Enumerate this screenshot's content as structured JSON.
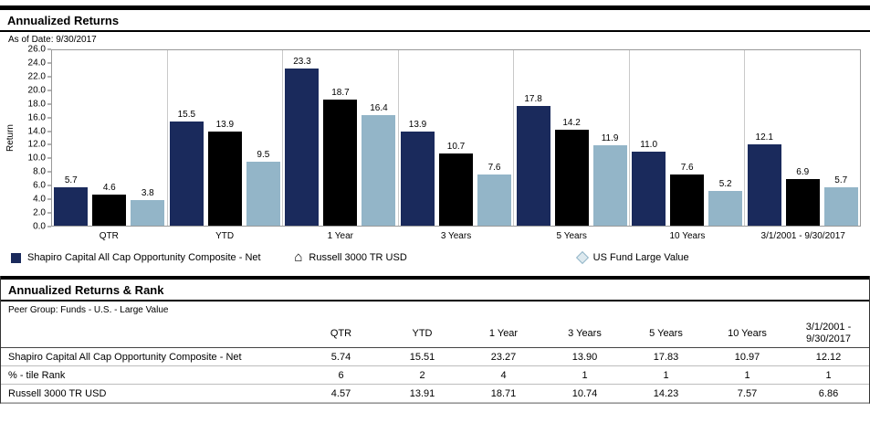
{
  "section1": {
    "title": "Annualized Returns",
    "as_of": "As of Date: 9/30/2017"
  },
  "chart_data": {
    "type": "bar",
    "title": "Annualized Returns",
    "xlabel": "",
    "ylabel": "Return",
    "ylim": [
      0,
      26
    ],
    "ytick_step": 2,
    "yticks": [
      "26.0",
      "24.0",
      "22.0",
      "20.0",
      "18.0",
      "16.0",
      "14.0",
      "12.0",
      "10.0",
      "8.0",
      "6.0",
      "4.0",
      "2.0",
      "0.0"
    ],
    "grid": "category-separators",
    "legend_position": "bottom",
    "categories": [
      "QTR",
      "YTD",
      "1 Year",
      "3 Years",
      "5 Years",
      "10 Years",
      "3/1/2001 - 9/30/2017"
    ],
    "series": [
      {
        "name": "Shapiro Capital All Cap Opportunity Composite - Net",
        "marker": "square",
        "color": "#1A2A5C",
        "values": [
          5.7,
          15.5,
          23.3,
          13.9,
          17.8,
          11.0,
          12.1
        ]
      },
      {
        "name": "Russell 3000 TR USD",
        "marker": "house",
        "color": "#000000",
        "values": [
          4.6,
          13.9,
          18.7,
          10.7,
          14.2,
          7.6,
          6.9
        ]
      },
      {
        "name": "US Fund Large Value",
        "marker": "diamond",
        "color": "#93B5C8",
        "values": [
          3.8,
          9.5,
          16.4,
          7.6,
          11.9,
          5.2,
          5.7
        ]
      }
    ]
  },
  "section2": {
    "title": "Annualized Returns & Rank",
    "peer_group": "Peer Group: Funds - U.S. - Large Value",
    "table": {
      "columns": [
        "",
        "QTR",
        "YTD",
        "1 Year",
        "3 Years",
        "5 Years",
        "10 Years",
        "3/1/2001 - 9/30/2017"
      ],
      "rows": [
        {
          "label": "Shapiro Capital All Cap Opportunity Composite - Net",
          "values": [
            "5.74",
            "15.51",
            "23.27",
            "13.90",
            "17.83",
            "10.97",
            "12.12"
          ]
        },
        {
          "label": "% - tile Rank",
          "values": [
            "6",
            "2",
            "4",
            "1",
            "1",
            "1",
            "1"
          ]
        },
        {
          "label": "Russell 3000 TR USD",
          "values": [
            "4.57",
            "13.91",
            "18.71",
            "10.74",
            "14.23",
            "7.57",
            "6.86"
          ]
        }
      ]
    }
  }
}
